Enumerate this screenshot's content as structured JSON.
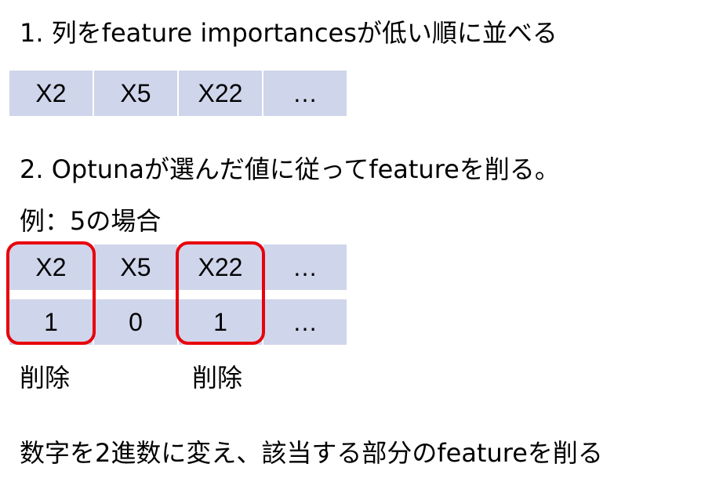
{
  "step1": {
    "text": "1. 列をfeature importancesが低い順に並べる"
  },
  "table1": {
    "cells": [
      "X2",
      "X5",
      "X22",
      "…"
    ]
  },
  "step2": {
    "text": "2. Optunaが選んだ値に従ってfeatureを削る。"
  },
  "example": {
    "text": "例：5の場合"
  },
  "table2": {
    "header": [
      "X2",
      "X5",
      "X22",
      "…"
    ],
    "values": [
      "1",
      "0",
      "1",
      "…"
    ]
  },
  "labels": {
    "delete_1": "削除",
    "delete_2": "削除"
  },
  "footer": {
    "text": "数字を2進数に変え、該当する部分のfeatureを削る"
  },
  "colors": {
    "cell_fill": "#cfd5ea",
    "highlight_border": "#e8000b"
  }
}
